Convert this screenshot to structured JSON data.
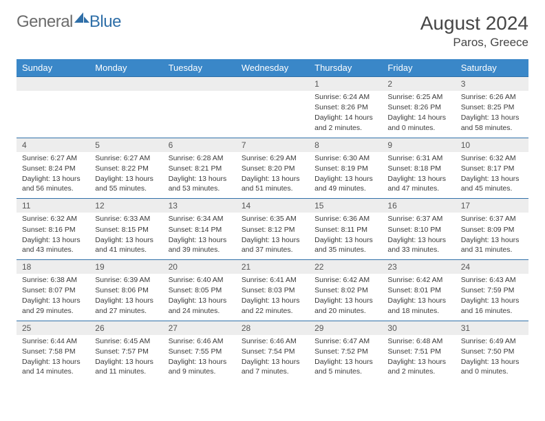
{
  "brand": {
    "name_a": "General",
    "name_b": "Blue"
  },
  "title": "August 2024",
  "location": "Paros, Greece",
  "header_bg": "#3a87c8",
  "border_color": "#2f6fa8",
  "daynum_bg": "#ededed",
  "weekdays": [
    "Sunday",
    "Monday",
    "Tuesday",
    "Wednesday",
    "Thursday",
    "Friday",
    "Saturday"
  ],
  "weeks": [
    [
      null,
      null,
      null,
      null,
      {
        "n": "1",
        "sr": "6:24 AM",
        "ss": "8:26 PM",
        "dl": "14 hours and 2 minutes."
      },
      {
        "n": "2",
        "sr": "6:25 AM",
        "ss": "8:26 PM",
        "dl": "14 hours and 0 minutes."
      },
      {
        "n": "3",
        "sr": "6:26 AM",
        "ss": "8:25 PM",
        "dl": "13 hours and 58 minutes."
      }
    ],
    [
      {
        "n": "4",
        "sr": "6:27 AM",
        "ss": "8:24 PM",
        "dl": "13 hours and 56 minutes."
      },
      {
        "n": "5",
        "sr": "6:27 AM",
        "ss": "8:22 PM",
        "dl": "13 hours and 55 minutes."
      },
      {
        "n": "6",
        "sr": "6:28 AM",
        "ss": "8:21 PM",
        "dl": "13 hours and 53 minutes."
      },
      {
        "n": "7",
        "sr": "6:29 AM",
        "ss": "8:20 PM",
        "dl": "13 hours and 51 minutes."
      },
      {
        "n": "8",
        "sr": "6:30 AM",
        "ss": "8:19 PM",
        "dl": "13 hours and 49 minutes."
      },
      {
        "n": "9",
        "sr": "6:31 AM",
        "ss": "8:18 PM",
        "dl": "13 hours and 47 minutes."
      },
      {
        "n": "10",
        "sr": "6:32 AM",
        "ss": "8:17 PM",
        "dl": "13 hours and 45 minutes."
      }
    ],
    [
      {
        "n": "11",
        "sr": "6:32 AM",
        "ss": "8:16 PM",
        "dl": "13 hours and 43 minutes."
      },
      {
        "n": "12",
        "sr": "6:33 AM",
        "ss": "8:15 PM",
        "dl": "13 hours and 41 minutes."
      },
      {
        "n": "13",
        "sr": "6:34 AM",
        "ss": "8:14 PM",
        "dl": "13 hours and 39 minutes."
      },
      {
        "n": "14",
        "sr": "6:35 AM",
        "ss": "8:12 PM",
        "dl": "13 hours and 37 minutes."
      },
      {
        "n": "15",
        "sr": "6:36 AM",
        "ss": "8:11 PM",
        "dl": "13 hours and 35 minutes."
      },
      {
        "n": "16",
        "sr": "6:37 AM",
        "ss": "8:10 PM",
        "dl": "13 hours and 33 minutes."
      },
      {
        "n": "17",
        "sr": "6:37 AM",
        "ss": "8:09 PM",
        "dl": "13 hours and 31 minutes."
      }
    ],
    [
      {
        "n": "18",
        "sr": "6:38 AM",
        "ss": "8:07 PM",
        "dl": "13 hours and 29 minutes."
      },
      {
        "n": "19",
        "sr": "6:39 AM",
        "ss": "8:06 PM",
        "dl": "13 hours and 27 minutes."
      },
      {
        "n": "20",
        "sr": "6:40 AM",
        "ss": "8:05 PM",
        "dl": "13 hours and 24 minutes."
      },
      {
        "n": "21",
        "sr": "6:41 AM",
        "ss": "8:03 PM",
        "dl": "13 hours and 22 minutes."
      },
      {
        "n": "22",
        "sr": "6:42 AM",
        "ss": "8:02 PM",
        "dl": "13 hours and 20 minutes."
      },
      {
        "n": "23",
        "sr": "6:42 AM",
        "ss": "8:01 PM",
        "dl": "13 hours and 18 minutes."
      },
      {
        "n": "24",
        "sr": "6:43 AM",
        "ss": "7:59 PM",
        "dl": "13 hours and 16 minutes."
      }
    ],
    [
      {
        "n": "25",
        "sr": "6:44 AM",
        "ss": "7:58 PM",
        "dl": "13 hours and 14 minutes."
      },
      {
        "n": "26",
        "sr": "6:45 AM",
        "ss": "7:57 PM",
        "dl": "13 hours and 11 minutes."
      },
      {
        "n": "27",
        "sr": "6:46 AM",
        "ss": "7:55 PM",
        "dl": "13 hours and 9 minutes."
      },
      {
        "n": "28",
        "sr": "6:46 AM",
        "ss": "7:54 PM",
        "dl": "13 hours and 7 minutes."
      },
      {
        "n": "29",
        "sr": "6:47 AM",
        "ss": "7:52 PM",
        "dl": "13 hours and 5 minutes."
      },
      {
        "n": "30",
        "sr": "6:48 AM",
        "ss": "7:51 PM",
        "dl": "13 hours and 2 minutes."
      },
      {
        "n": "31",
        "sr": "6:49 AM",
        "ss": "7:50 PM",
        "dl": "13 hours and 0 minutes."
      }
    ]
  ],
  "labels": {
    "sunrise": "Sunrise:",
    "sunset": "Sunset:",
    "daylight": "Daylight:"
  }
}
